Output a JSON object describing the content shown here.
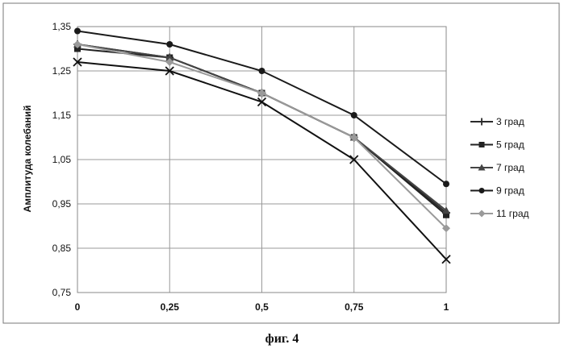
{
  "caption": "фиг. 4",
  "chart_data": {
    "type": "line",
    "x": [
      0,
      0.25,
      0.5,
      0.75,
      1
    ],
    "x_tick_labels": [
      "0",
      "0,25",
      "0,5",
      "0,75",
      "1"
    ],
    "y_tick_labels": [
      "0,75",
      "0,85",
      "0,95",
      "1,05",
      "1,15",
      "1,25",
      "1,35"
    ],
    "ylim": [
      0.75,
      1.35
    ],
    "ylabel": "Амплитуда колебаний",
    "xlabel": "",
    "grid": true,
    "legend_position": "right",
    "series": [
      {
        "name": "3 град",
        "values": [
          1.31,
          1.28,
          1.2,
          1.1,
          0.93
        ],
        "marker": "cross",
        "color": "#2b2b2b"
      },
      {
        "name": "5 град",
        "values": [
          1.3,
          1.28,
          1.2,
          1.1,
          0.925
        ],
        "marker": "square",
        "color": "#222222"
      },
      {
        "name": "7 град",
        "values": [
          1.31,
          1.28,
          1.2,
          1.1,
          0.935
        ],
        "marker": "triangle",
        "color": "#444444"
      },
      {
        "name": "9 град",
        "values": [
          1.34,
          1.31,
          1.25,
          1.15,
          0.995
        ],
        "marker": "circle",
        "color": "#1a1a1a"
      },
      {
        "name": "11 град",
        "values": [
          1.31,
          1.27,
          1.2,
          1.1,
          0.895
        ],
        "marker": "diamond",
        "color": "#9a9a9a"
      },
      {
        "name": "",
        "values": [
          1.27,
          1.25,
          1.18,
          1.05,
          0.825
        ],
        "marker": "x",
        "color": "#111111"
      }
    ]
  }
}
